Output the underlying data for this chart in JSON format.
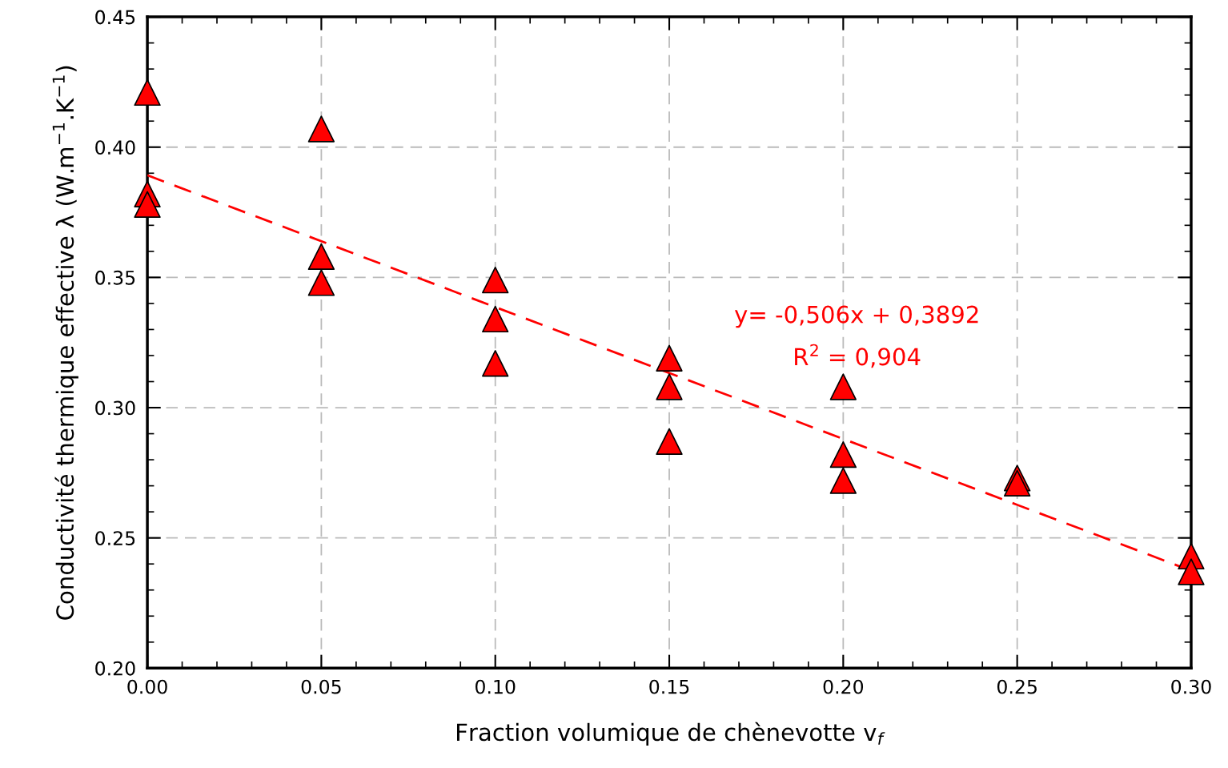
{
  "chart_data": {
    "type": "scatter",
    "xlabel": "Fraction volumique de chènevotte v$_{f}$",
    "ylabel": "Conductivité thermique effective λ (W.m$^{−1}$.K$^{−1}$)",
    "xlim": [
      0,
      0.3
    ],
    "ylim": [
      0.2,
      0.45
    ],
    "xticks": [
      {
        "value": 0,
        "label": "0.00"
      },
      {
        "value": 0.05,
        "label": "0.05"
      },
      {
        "value": 0.1,
        "label": "0.10"
      },
      {
        "value": 0.15,
        "label": "0.15"
      },
      {
        "value": 0.2,
        "label": "0.20"
      },
      {
        "value": 0.25,
        "label": "0.25"
      },
      {
        "value": 0.3,
        "label": "0.30"
      }
    ],
    "yticks": [
      {
        "value": 0.2,
        "label": "0.20"
      },
      {
        "value": 0.25,
        "label": "0.25"
      },
      {
        "value": 0.3,
        "label": "0.30"
      },
      {
        "value": 0.35,
        "label": "0.35"
      },
      {
        "value": 0.4,
        "label": "0.40"
      },
      {
        "value": 0.45,
        "label": "0.45"
      }
    ],
    "grid": true,
    "series": [
      {
        "color": "#ff0000",
        "marker": "triangle",
        "x": [
          0,
          0,
          0,
          0.05,
          0.05,
          0.05,
          0.1,
          0.1,
          0.1,
          0.15,
          0.15,
          0.15,
          0.2,
          0.2,
          0.2,
          0.25,
          0.25,
          0.3,
          0.3
        ],
        "values": [
          0.421,
          0.382,
          0.378,
          0.407,
          0.358,
          0.348,
          0.349,
          0.334,
          0.317,
          0.319,
          0.308,
          0.287,
          0.308,
          0.282,
          0.272,
          0.273,
          0.271,
          0.243,
          0.237
        ]
      },
      {
        "type": "line",
        "color": "#ff0000",
        "line_style": "dashed",
        "marker": "none",
        "x": [
          0,
          0.3
        ],
        "values": [
          0.3892,
          0.2374
        ]
      }
    ],
    "annotations": [
      "y= -0,506x + 0,3892",
      "R$^{2}$ = 0,904"
    ]
  }
}
